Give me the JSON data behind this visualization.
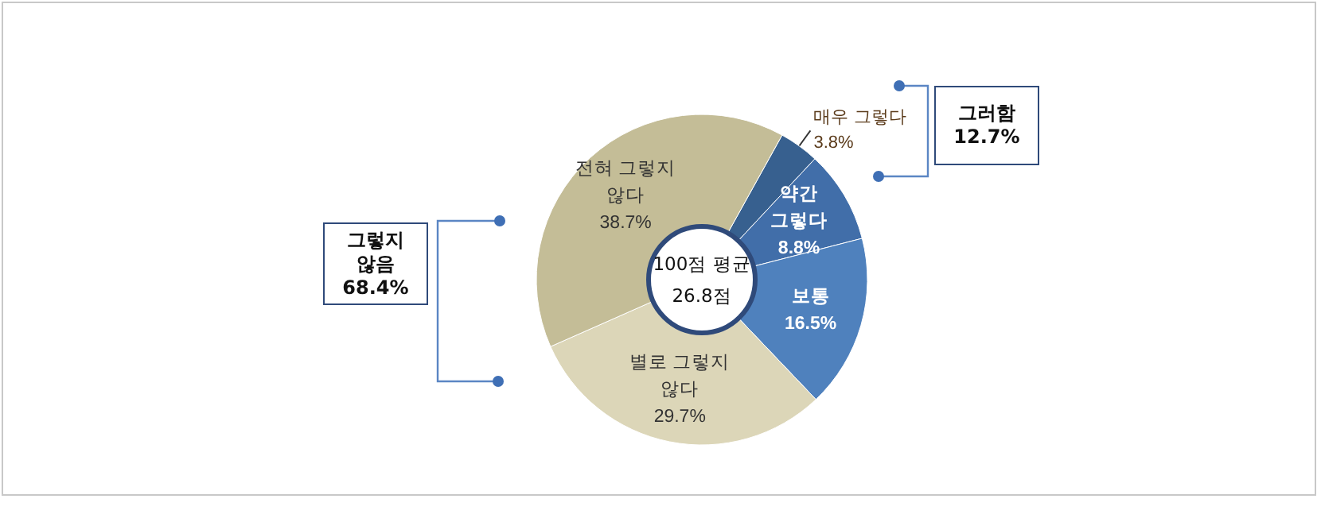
{
  "chart_data": {
    "type": "donut",
    "categories": [
      "매우 그렇다",
      "약간 그렇다",
      "보통",
      "별로 그렇지 않다",
      "전혀 그렇지 않다"
    ],
    "values": [
      3.8,
      8.8,
      16.5,
      29.7,
      38.7
    ],
    "value_labels": [
      "3.8%",
      "8.8%",
      "16.5%",
      "29.7%",
      "38.7%"
    ],
    "colors": [
      "#37608f",
      "#416ea9",
      "#4f81bd",
      "#dcd6b8",
      "#c4bd97"
    ],
    "annotations": [
      "100점 평균\n26.8점",
      "그렇지\n않음\n68.4%",
      "그러함\n12.7%"
    ],
    "legend": false
  }
}
